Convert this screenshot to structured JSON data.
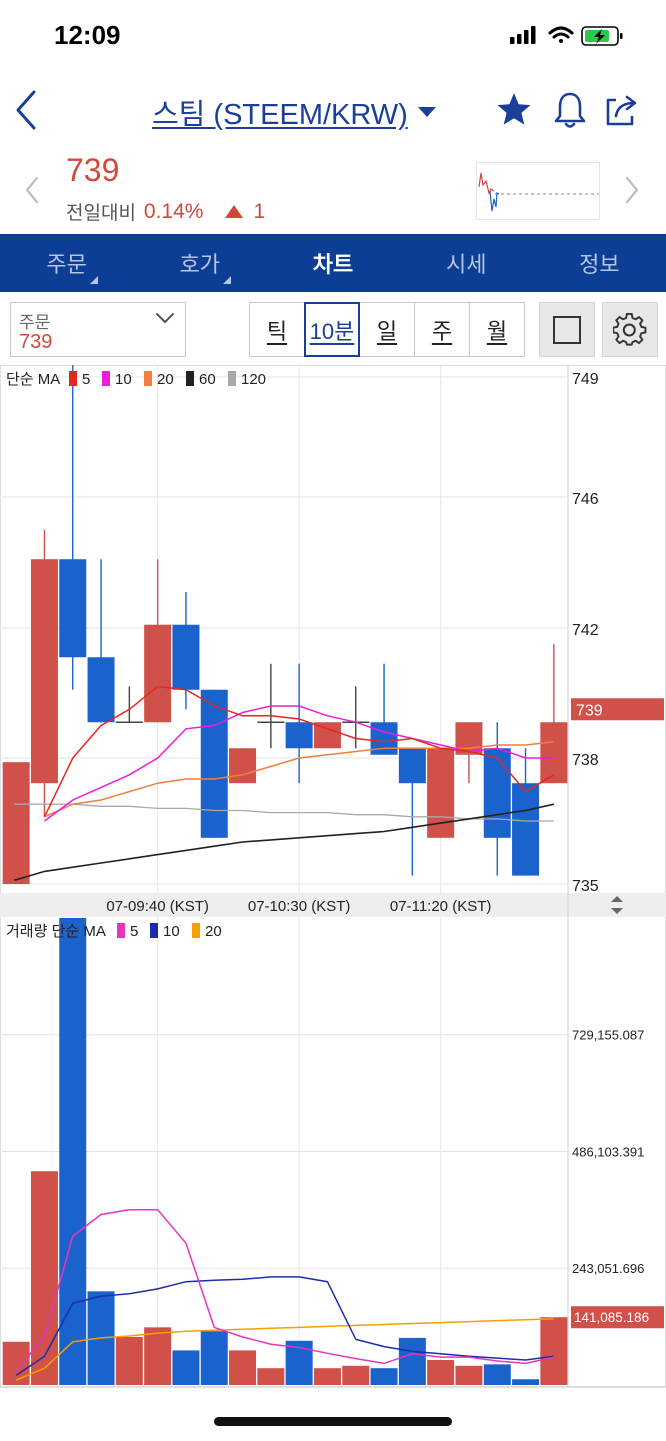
{
  "status_bar": {
    "time": "12:09"
  },
  "header": {
    "title": "스팀 (STEEM/KRW)"
  },
  "price": {
    "current": "739",
    "change_label": "전일대비",
    "change_percent": "0.14%",
    "change_amount": "1"
  },
  "tabs": [
    {
      "label": "주문"
    },
    {
      "label": "호가"
    },
    {
      "label": "차트"
    },
    {
      "label": "시세"
    },
    {
      "label": "정보"
    }
  ],
  "toolbar": {
    "order_label": "주문",
    "order_value": "739",
    "periods": [
      {
        "label": "틱"
      },
      {
        "label": "10분"
      },
      {
        "label": "일"
      },
      {
        "label": "주"
      },
      {
        "label": "월"
      }
    ]
  },
  "colors": {
    "up": "#d0504a",
    "down": "#1a62cc",
    "ma5": "#e8261f",
    "ma10": "#ee1cdc",
    "ma20": "#f17f3c",
    "ma60": "#222222",
    "ma120": "#a9a9a9",
    "vol_ma5": "#e535be",
    "vol_ma10": "#1b2ea8",
    "vol_ma20": "#f5a000",
    "header_blue": "#0d3e96"
  },
  "chart_data": [
    {
      "type": "candlestick",
      "legend_title": "단순 MA",
      "legend": [
        {
          "name": "5",
          "color_key": "ma5"
        },
        {
          "name": "10",
          "color_key": "ma10"
        },
        {
          "name": "20",
          "color_key": "ma20"
        },
        {
          "name": "60",
          "color_key": "ma60"
        },
        {
          "name": "120",
          "color_key": "ma120"
        }
      ],
      "ylim": [
        735,
        749
      ],
      "yticks": [
        749,
        746,
        742,
        738,
        735
      ],
      "xticks": [
        "07-09:40 (KST)",
        "07-10:30 (KST)",
        "07-11:20 (KST)"
      ],
      "current_price_label": "739",
      "current_price": 739.5,
      "candles": [
        {
          "o": 735,
          "h": 737.9,
          "l": 735,
          "c": 737.9
        },
        {
          "o": 737.4,
          "h": 745.0,
          "l": 736.6,
          "c": 744.1
        },
        {
          "o": 744.1,
          "h": 749.5,
          "l": 740.1,
          "c": 741.1
        },
        {
          "o": 741.1,
          "h": 744.1,
          "l": 739.1,
          "c": 739.1
        },
        {
          "o": 739.1,
          "h": 740.2,
          "l": 739.1,
          "c": 739.1
        },
        {
          "o": 739.1,
          "h": 744.1,
          "l": 739.1,
          "c": 742.1
        },
        {
          "o": 742.1,
          "h": 743.1,
          "l": 739.5,
          "c": 740.1
        },
        {
          "o": 740.1,
          "h": 740.1,
          "l": 736.1,
          "c": 736.1
        },
        {
          "o": 737.4,
          "h": 738.3,
          "l": 737.4,
          "c": 738.3
        },
        {
          "o": 739.1,
          "h": 740.9,
          "l": 738.3,
          "c": 739.1
        },
        {
          "o": 739.1,
          "h": 740.9,
          "l": 737.4,
          "c": 738.3
        },
        {
          "o": 738.3,
          "h": 739.1,
          "l": 738.3,
          "c": 739.1
        },
        {
          "o": 739.1,
          "h": 740.2,
          "l": 738.3,
          "c": 739.1
        },
        {
          "o": 739.1,
          "h": 740.9,
          "l": 738.1,
          "c": 738.1
        },
        {
          "o": 738.3,
          "h": 738.3,
          "l": 735.2,
          "c": 737.4
        },
        {
          "o": 736.1,
          "h": 738.3,
          "l": 736.1,
          "c": 738.3
        },
        {
          "o": 738.1,
          "h": 739.1,
          "l": 737.4,
          "c": 739.1
        },
        {
          "o": 738.3,
          "h": 739.1,
          "l": 735.2,
          "c": 736.1
        },
        {
          "o": 737.4,
          "h": 738.3,
          "l": 735.2,
          "c": 735.2
        },
        {
          "o": 737.4,
          "h": 741.5,
          "l": 737.4,
          "c": 739.1
        }
      ],
      "ma_lines": {
        "ma5": [
          null,
          736.6,
          738.0,
          739.0,
          739.5,
          740.2,
          740.1,
          739.6,
          739.3,
          739.3,
          739.2,
          738.9,
          738.6,
          738.5,
          738.6,
          738.3,
          738.2,
          738.0,
          737.2,
          737.6
        ],
        "ma10": [
          null,
          736.5,
          737.0,
          737.3,
          737.6,
          738.0,
          738.9,
          739.0,
          739.4,
          739.6,
          739.6,
          739.3,
          739.1,
          738.8,
          738.6,
          738.4,
          738.2,
          738.3,
          738.0,
          738.0
        ],
        "ma20": [
          null,
          736.6,
          736.9,
          737.0,
          737.2,
          737.4,
          737.5,
          737.5,
          737.6,
          737.8,
          738.0,
          738.1,
          738.2,
          738.3,
          738.3,
          738.3,
          738.3,
          738.4,
          738.4,
          738.5
        ],
        "ma60": [
          735.1,
          735.3,
          735.4,
          735.5,
          735.6,
          735.7,
          735.8,
          735.9,
          736.0,
          736.05,
          736.1,
          736.15,
          736.2,
          736.25,
          736.35,
          736.45,
          736.55,
          736.65,
          736.75,
          736.9
        ],
        "ma120": [
          736.9,
          736.9,
          736.9,
          736.85,
          736.85,
          736.8,
          736.8,
          736.75,
          736.75,
          736.7,
          736.7,
          736.7,
          736.65,
          736.65,
          736.6,
          736.6,
          736.55,
          736.55,
          736.5,
          736.5
        ]
      }
    },
    {
      "type": "bar",
      "legend_title": "거래량 단순 MA",
      "legend": [
        {
          "name": "5",
          "color_key": "vol_ma5"
        },
        {
          "name": "10",
          "color_key": "vol_ma10"
        },
        {
          "name": "20",
          "color_key": "vol_ma20"
        }
      ],
      "ylim": [
        0,
        972206
      ],
      "yticks": [
        "729,155.087",
        "486,103.391",
        "243,051.696"
      ],
      "ytick_values": [
        729155.087,
        486103.391,
        243051.696
      ],
      "current_volume_label": "141,085.186",
      "current_volume": 141085.186,
      "values": [
        90000,
        445000,
        975000,
        195000,
        100000,
        120000,
        72000,
        112000,
        72000,
        35000,
        92000,
        35000,
        40000,
        35000,
        98000,
        52000,
        40000,
        43000,
        12000,
        141085
      ],
      "ma_lines": {
        "vol_ma5": [
          30000,
          100000,
          310000,
          355000,
          365000,
          365000,
          295000,
          120000,
          100000,
          85000,
          78000,
          66000,
          55000,
          45000,
          65000,
          58000,
          58000,
          50000,
          45000,
          58000
        ],
        "vol_ma10": [
          20000,
          60000,
          170000,
          185000,
          190000,
          200000,
          215000,
          218000,
          220000,
          225000,
          225000,
          215000,
          95000,
          80000,
          70000,
          65000,
          60000,
          56000,
          52000,
          60000
        ],
        "vol_ma20": [
          10000,
          35000,
          90000,
          98000,
          102000,
          108000,
          112000,
          114000,
          116000,
          118000,
          120000,
          122000,
          124000,
          126000,
          128000,
          130000,
          132000,
          134000,
          136000,
          138000
        ]
      }
    }
  ]
}
